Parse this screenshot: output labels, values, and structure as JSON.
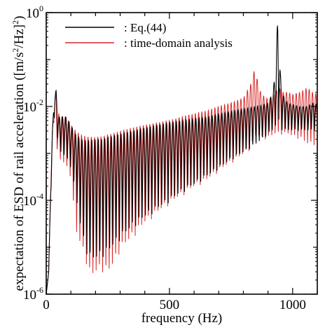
{
  "chart_data": {
    "type": "line",
    "xlabel": "frequency (Hz)",
    "ylabel": {
      "before": "expectation of ESD of rail acceleration ([m/s",
      "sup1": "2",
      "mid": "/Hz]",
      "sup2": "2",
      "after": ")"
    },
    "xlim": [
      0,
      1100
    ],
    "ylim": [
      1e-06,
      1
    ],
    "yscale": "log",
    "x_ticks": [
      {
        "value": 0,
        "label": "0"
      },
      {
        "value": 500,
        "label": "500"
      },
      {
        "value": 1000,
        "label": "1000"
      }
    ],
    "y_ticks": [
      {
        "value": 1,
        "base": "10",
        "exp": "0"
      },
      {
        "value": 0.01,
        "base": "10",
        "exp": "-2"
      },
      {
        "value": 0.0001,
        "base": "10",
        "exp": "-4"
      },
      {
        "value": 1e-06,
        "base": "10",
        "exp": "-6"
      }
    ],
    "legend_position": "top-left",
    "series": [
      {
        "name": ": Eq.(44)",
        "color": "#000000",
        "x": [
          0,
          10,
          18,
          25,
          30,
          36,
          40,
          45,
          50,
          55,
          60,
          70,
          80,
          90,
          100,
          120,
          140,
          160,
          180,
          200,
          225,
          250,
          275,
          300,
          350,
          400,
          450,
          500,
          550,
          600,
          650,
          700,
          750,
          800,
          850,
          880,
          900,
          920,
          930,
          936,
          940,
          944,
          950,
          960,
          980,
          1000,
          1030,
          1060,
          1080,
          1100
        ],
        "env_hi": [
          1e-06,
          3e-06,
          0.0002,
          0.003,
          0.01,
          0.02,
          0.022,
          0.012,
          0.006,
          0.006,
          0.006,
          0.006,
          0.006,
          0.005,
          0.004,
          0.0025,
          0.002,
          0.0019,
          0.0019,
          0.002,
          0.002,
          0.0022,
          0.0024,
          0.0026,
          0.003,
          0.0035,
          0.004,
          0.0045,
          0.005,
          0.0055,
          0.006,
          0.007,
          0.008,
          0.009,
          0.01,
          0.011,
          0.012,
          0.02,
          0.06,
          0.3,
          1.0,
          0.3,
          0.05,
          0.018,
          0.012,
          0.011,
          0.01,
          0.01,
          0.012,
          0.011
        ],
        "env_lo": [
          1e-06,
          3e-06,
          0.0001,
          0.001,
          0.004,
          0.008,
          0.006,
          0.002,
          0.0015,
          0.0012,
          0.001,
          0.0009,
          0.0008,
          0.0006,
          0.0005,
          0.00012,
          2.5e-05,
          8e-06,
          5e-06,
          5e-06,
          6e-06,
          7e-06,
          1e-05,
          1.4e-05,
          2.5e-05,
          4e-05,
          6e-05,
          9e-05,
          0.00014,
          0.0002,
          0.0003,
          0.00045,
          0.0007,
          0.001,
          0.0015,
          0.002,
          0.0025,
          0.003,
          0.0035,
          0.004,
          0.004,
          0.004,
          0.0035,
          0.003,
          0.003,
          0.003,
          0.003,
          0.003,
          0.003,
          0.003
        ]
      },
      {
        "name": ": time-domain analysis",
        "color": "#d62728",
        "x": [
          0,
          10,
          18,
          25,
          30,
          36,
          40,
          45,
          50,
          55,
          60,
          70,
          80,
          90,
          100,
          120,
          140,
          160,
          180,
          200,
          225,
          250,
          275,
          300,
          350,
          400,
          450,
          500,
          550,
          600,
          650,
          700,
          750,
          800,
          830,
          845,
          855,
          870,
          890,
          910,
          930,
          945,
          960,
          980,
          1000,
          1030,
          1060,
          1080,
          1100
        ],
        "env_hi": [
          1e-06,
          3e-06,
          0.0002,
          0.003,
          0.008,
          0.015,
          0.02,
          0.012,
          0.007,
          0.007,
          0.006,
          0.006,
          0.006,
          0.005,
          0.004,
          0.003,
          0.0025,
          0.0023,
          0.0022,
          0.0022,
          0.0023,
          0.0025,
          0.0027,
          0.003,
          0.0035,
          0.004,
          0.0045,
          0.005,
          0.006,
          0.007,
          0.008,
          0.01,
          0.012,
          0.015,
          0.03,
          0.06,
          0.04,
          0.02,
          0.015,
          0.015,
          0.02,
          0.025,
          0.02,
          0.02,
          0.018,
          0.02,
          0.025,
          0.02,
          0.018
        ],
        "env_lo": [
          1e-06,
          3e-06,
          0.0001,
          0.002,
          0.004,
          0.008,
          0.005,
          0.0008,
          1.6e-05,
          0.0006,
          0.0008,
          0.0006,
          0.0005,
          0.0004,
          0.0003,
          2e-05,
          1e-05,
          5e-06,
          2e-06,
          2.5e-06,
          3e-06,
          2.5e-06,
          4e-06,
          8e-06,
          1.5e-05,
          3e-05,
          5e-05,
          8e-05,
          0.00012,
          0.00018,
          0.00025,
          0.0004,
          0.0006,
          0.0009,
          0.0012,
          0.002,
          0.0025,
          0.002,
          0.002,
          0.0022,
          0.0025,
          0.0025,
          0.0025,
          0.0025,
          0.0022,
          0.002,
          0.0015,
          0.0015,
          0.0015
        ]
      }
    ]
  }
}
